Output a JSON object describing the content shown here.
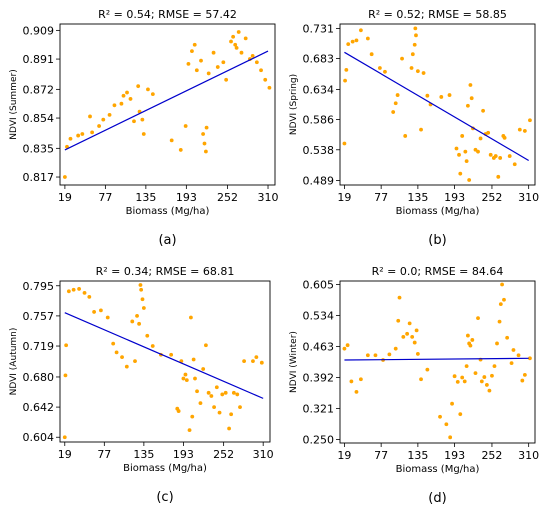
{
  "chart_data": [
    {
      "type": "scatter",
      "title": "R² = 0.54; RMSE = 57.42",
      "xlabel": "Biomass (Mg/ha)",
      "ylabel": "NDVI (Summer)",
      "caption": "(a)",
      "xlim": [
        12,
        320
      ],
      "ylim": [
        0.812,
        0.913
      ],
      "xticks": [
        19,
        77,
        135,
        193,
        252,
        310
      ],
      "yticks": [
        "0.817",
        "0.835",
        "0.854",
        "0.872",
        "0.891",
        "0.909"
      ],
      "colors": {
        "points": "#ffa500",
        "fit": "#0000cc"
      },
      "fit_line": {
        "x": [
          19,
          310
        ],
        "y": [
          0.834,
          0.896
        ]
      },
      "points": [
        {
          "x": 19,
          "y": 0.817
        },
        {
          "x": 22,
          "y": 0.836
        },
        {
          "x": 27,
          "y": 0.841
        },
        {
          "x": 38,
          "y": 0.843
        },
        {
          "x": 44,
          "y": 0.844
        },
        {
          "x": 55,
          "y": 0.855
        },
        {
          "x": 58,
          "y": 0.845
        },
        {
          "x": 68,
          "y": 0.849
        },
        {
          "x": 74,
          "y": 0.853
        },
        {
          "x": 83,
          "y": 0.856
        },
        {
          "x": 90,
          "y": 0.862
        },
        {
          "x": 100,
          "y": 0.863
        },
        {
          "x": 103,
          "y": 0.868
        },
        {
          "x": 108,
          "y": 0.87
        },
        {
          "x": 113,
          "y": 0.866
        },
        {
          "x": 118,
          "y": 0.852
        },
        {
          "x": 124,
          "y": 0.874
        },
        {
          "x": 126,
          "y": 0.858
        },
        {
          "x": 130,
          "y": 0.853
        },
        {
          "x": 132,
          "y": 0.844
        },
        {
          "x": 138,
          "y": 0.872
        },
        {
          "x": 145,
          "y": 0.869
        },
        {
          "x": 172,
          "y": 0.84
        },
        {
          "x": 185,
          "y": 0.834
        },
        {
          "x": 192,
          "y": 0.849
        },
        {
          "x": 196,
          "y": 0.888
        },
        {
          "x": 201,
          "y": 0.896
        },
        {
          "x": 205,
          "y": 0.9
        },
        {
          "x": 208,
          "y": 0.884
        },
        {
          "x": 214,
          "y": 0.89
        },
        {
          "x": 217,
          "y": 0.844
        },
        {
          "x": 219,
          "y": 0.838
        },
        {
          "x": 221,
          "y": 0.833
        },
        {
          "x": 222,
          "y": 0.848
        },
        {
          "x": 225,
          "y": 0.882
        },
        {
          "x": 232,
          "y": 0.895
        },
        {
          "x": 238,
          "y": 0.886
        },
        {
          "x": 246,
          "y": 0.889
        },
        {
          "x": 250,
          "y": 0.878
        },
        {
          "x": 257,
          "y": 0.902
        },
        {
          "x": 260,
          "y": 0.905
        },
        {
          "x": 263,
          "y": 0.9
        },
        {
          "x": 265,
          "y": 0.898
        },
        {
          "x": 268,
          "y": 0.908
        },
        {
          "x": 272,
          "y": 0.895
        },
        {
          "x": 278,
          "y": 0.904
        },
        {
          "x": 284,
          "y": 0.891
        },
        {
          "x": 288,
          "y": 0.893
        },
        {
          "x": 294,
          "y": 0.889
        },
        {
          "x": 300,
          "y": 0.884
        },
        {
          "x": 306,
          "y": 0.878
        },
        {
          "x": 312,
          "y": 0.873
        }
      ]
    },
    {
      "type": "scatter",
      "title": "R² = 0.52; RMSE = 58.85",
      "xlabel": "Biomass (Mg/ha)",
      "ylabel": "NDVI (Spring)",
      "caption": "(b)",
      "xlim": [
        12,
        320
      ],
      "ylim": [
        0.482,
        0.738
      ],
      "xticks": [
        19,
        77,
        135,
        193,
        252,
        310
      ],
      "yticks": [
        "0.489",
        "0.538",
        "0.586",
        "0.634",
        "0.683",
        "0.731"
      ],
      "colors": {
        "points": "#ffa500",
        "fit": "#0000cc"
      },
      "fit_line": {
        "x": [
          19,
          310
        ],
        "y": [
          0.693,
          0.521
        ]
      },
      "points": [
        {
          "x": 19,
          "y": 0.548
        },
        {
          "x": 20,
          "y": 0.648
        },
        {
          "x": 22,
          "y": 0.665
        },
        {
          "x": 25,
          "y": 0.706
        },
        {
          "x": 32,
          "y": 0.71
        },
        {
          "x": 38,
          "y": 0.712
        },
        {
          "x": 45,
          "y": 0.728
        },
        {
          "x": 56,
          "y": 0.715
        },
        {
          "x": 62,
          "y": 0.69
        },
        {
          "x": 75,
          "y": 0.668
        },
        {
          "x": 83,
          "y": 0.662
        },
        {
          "x": 96,
          "y": 0.598
        },
        {
          "x": 100,
          "y": 0.612
        },
        {
          "x": 103,
          "y": 0.625
        },
        {
          "x": 110,
          "y": 0.683
        },
        {
          "x": 115,
          "y": 0.56
        },
        {
          "x": 125,
          "y": 0.668
        },
        {
          "x": 127,
          "y": 0.69
        },
        {
          "x": 130,
          "y": 0.705
        },
        {
          "x": 131,
          "y": 0.731
        },
        {
          "x": 132,
          "y": 0.72
        },
        {
          "x": 135,
          "y": 0.663
        },
        {
          "x": 140,
          "y": 0.57
        },
        {
          "x": 144,
          "y": 0.66
        },
        {
          "x": 150,
          "y": 0.624
        },
        {
          "x": 155,
          "y": 0.61
        },
        {
          "x": 172,
          "y": 0.622
        },
        {
          "x": 185,
          "y": 0.625
        },
        {
          "x": 196,
          "y": 0.54
        },
        {
          "x": 200,
          "y": 0.53
        },
        {
          "x": 202,
          "y": 0.5
        },
        {
          "x": 205,
          "y": 0.56
        },
        {
          "x": 210,
          "y": 0.535
        },
        {
          "x": 212,
          "y": 0.52
        },
        {
          "x": 214,
          "y": 0.608
        },
        {
          "x": 216,
          "y": 0.49
        },
        {
          "x": 218,
          "y": 0.641
        },
        {
          "x": 220,
          "y": 0.62
        },
        {
          "x": 222,
          "y": 0.572
        },
        {
          "x": 226,
          "y": 0.538
        },
        {
          "x": 230,
          "y": 0.535
        },
        {
          "x": 234,
          "y": 0.556
        },
        {
          "x": 238,
          "y": 0.6
        },
        {
          "x": 242,
          "y": 0.563
        },
        {
          "x": 246,
          "y": 0.565
        },
        {
          "x": 250,
          "y": 0.53
        },
        {
          "x": 255,
          "y": 0.525
        },
        {
          "x": 258,
          "y": 0.528
        },
        {
          "x": 262,
          "y": 0.495
        },
        {
          "x": 265,
          "y": 0.525
        },
        {
          "x": 270,
          "y": 0.56
        },
        {
          "x": 272,
          "y": 0.557
        },
        {
          "x": 280,
          "y": 0.528
        },
        {
          "x": 288,
          "y": 0.515
        },
        {
          "x": 296,
          "y": 0.57
        },
        {
          "x": 304,
          "y": 0.568
        },
        {
          "x": 312,
          "y": 0.585
        }
      ]
    },
    {
      "type": "scatter",
      "title": "R² = 0.34; RMSE = 68.81",
      "xlabel": "Biomass (Mg/ha)",
      "ylabel": "NDVI (Autumn)",
      "caption": "(c)",
      "xlim": [
        12,
        320
      ],
      "ylim": [
        0.598,
        0.801
      ],
      "xticks": [
        19,
        77,
        135,
        193,
        252,
        310
      ],
      "yticks": [
        "0.604",
        "0.642",
        "0.680",
        "0.719",
        "0.757",
        "0.795"
      ],
      "colors": {
        "points": "#ffa500",
        "fit": "#0000cc"
      },
      "fit_line": {
        "x": [
          19,
          310
        ],
        "y": [
          0.761,
          0.653
        ]
      },
      "points": [
        {
          "x": 19,
          "y": 0.604
        },
        {
          "x": 20,
          "y": 0.682
        },
        {
          "x": 21,
          "y": 0.72
        },
        {
          "x": 25,
          "y": 0.788
        },
        {
          "x": 32,
          "y": 0.79
        },
        {
          "x": 40,
          "y": 0.791
        },
        {
          "x": 48,
          "y": 0.786
        },
        {
          "x": 55,
          "y": 0.781
        },
        {
          "x": 62,
          "y": 0.762
        },
        {
          "x": 72,
          "y": 0.764
        },
        {
          "x": 82,
          "y": 0.755
        },
        {
          "x": 90,
          "y": 0.722
        },
        {
          "x": 95,
          "y": 0.711
        },
        {
          "x": 103,
          "y": 0.705
        },
        {
          "x": 110,
          "y": 0.693
        },
        {
          "x": 118,
          "y": 0.75
        },
        {
          "x": 122,
          "y": 0.7
        },
        {
          "x": 125,
          "y": 0.757
        },
        {
          "x": 128,
          "y": 0.747
        },
        {
          "x": 130,
          "y": 0.796
        },
        {
          "x": 131,
          "y": 0.79
        },
        {
          "x": 133,
          "y": 0.778
        },
        {
          "x": 135,
          "y": 0.767
        },
        {
          "x": 140,
          "y": 0.732
        },
        {
          "x": 148,
          "y": 0.719
        },
        {
          "x": 160,
          "y": 0.708
        },
        {
          "x": 175,
          "y": 0.708
        },
        {
          "x": 184,
          "y": 0.64
        },
        {
          "x": 186,
          "y": 0.637
        },
        {
          "x": 190,
          "y": 0.7
        },
        {
          "x": 193,
          "y": 0.678
        },
        {
          "x": 196,
          "y": 0.683
        },
        {
          "x": 198,
          "y": 0.676
        },
        {
          "x": 202,
          "y": 0.613
        },
        {
          "x": 204,
          "y": 0.755
        },
        {
          "x": 206,
          "y": 0.63
        },
        {
          "x": 208,
          "y": 0.702
        },
        {
          "x": 210,
          "y": 0.678
        },
        {
          "x": 213,
          "y": 0.662
        },
        {
          "x": 218,
          "y": 0.647
        },
        {
          "x": 222,
          "y": 0.69
        },
        {
          "x": 226,
          "y": 0.72
        },
        {
          "x": 230,
          "y": 0.66
        },
        {
          "x": 234,
          "y": 0.656
        },
        {
          "x": 238,
          "y": 0.642
        },
        {
          "x": 242,
          "y": 0.667
        },
        {
          "x": 246,
          "y": 0.635
        },
        {
          "x": 250,
          "y": 0.658
        },
        {
          "x": 255,
          "y": 0.66
        },
        {
          "x": 260,
          "y": 0.615
        },
        {
          "x": 263,
          "y": 0.633
        },
        {
          "x": 267,
          "y": 0.66
        },
        {
          "x": 272,
          "y": 0.658
        },
        {
          "x": 276,
          "y": 0.642
        },
        {
          "x": 282,
          "y": 0.7
        },
        {
          "x": 295,
          "y": 0.7
        },
        {
          "x": 300,
          "y": 0.705
        },
        {
          "x": 308,
          "y": 0.698
        }
      ]
    },
    {
      "type": "scatter",
      "title": "R² = 0.0; RMSE = 84.64",
      "xlabel": "Biomass (Mg/ha)",
      "ylabel": "NDVI (Winter)",
      "caption": "(d)",
      "xlim": [
        12,
        320
      ],
      "ylim": [
        0.242,
        0.613
      ],
      "xticks": [
        19,
        77,
        135,
        193,
        252,
        310
      ],
      "yticks": [
        "0.250",
        "0.321",
        "0.392",
        "0.463",
        "0.534",
        "0.605"
      ],
      "colors": {
        "points": "#ffa500",
        "fit": "#0000cc"
      },
      "fit_line": {
        "x": [
          19,
          310
        ],
        "y": [
          0.432,
          0.436
        ]
      },
      "points": [
        {
          "x": 19,
          "y": 0.458
        },
        {
          "x": 24,
          "y": 0.466
        },
        {
          "x": 30,
          "y": 0.383
        },
        {
          "x": 38,
          "y": 0.359
        },
        {
          "x": 45,
          "y": 0.388
        },
        {
          "x": 56,
          "y": 0.443
        },
        {
          "x": 68,
          "y": 0.443
        },
        {
          "x": 80,
          "y": 0.432
        },
        {
          "x": 90,
          "y": 0.445
        },
        {
          "x": 100,
          "y": 0.458
        },
        {
          "x": 104,
          "y": 0.522
        },
        {
          "x": 106,
          "y": 0.575
        },
        {
          "x": 112,
          "y": 0.485
        },
        {
          "x": 118,
          "y": 0.492
        },
        {
          "x": 122,
          "y": 0.516
        },
        {
          "x": 126,
          "y": 0.485
        },
        {
          "x": 130,
          "y": 0.472
        },
        {
          "x": 133,
          "y": 0.5
        },
        {
          "x": 135,
          "y": 0.446
        },
        {
          "x": 140,
          "y": 0.388
        },
        {
          "x": 150,
          "y": 0.41
        },
        {
          "x": 170,
          "y": 0.302
        },
        {
          "x": 180,
          "y": 0.285
        },
        {
          "x": 186,
          "y": 0.255
        },
        {
          "x": 189,
          "y": 0.332
        },
        {
          "x": 193,
          "y": 0.395
        },
        {
          "x": 198,
          "y": 0.382
        },
        {
          "x": 202,
          "y": 0.308
        },
        {
          "x": 205,
          "y": 0.392
        },
        {
          "x": 209,
          "y": 0.383
        },
        {
          "x": 212,
          "y": 0.418
        },
        {
          "x": 214,
          "y": 0.488
        },
        {
          "x": 216,
          "y": 0.47
        },
        {
          "x": 218,
          "y": 0.465
        },
        {
          "x": 221,
          "y": 0.478
        },
        {
          "x": 226,
          "y": 0.402
        },
        {
          "x": 230,
          "y": 0.528
        },
        {
          "x": 234,
          "y": 0.433
        },
        {
          "x": 236,
          "y": 0.383
        },
        {
          "x": 240,
          "y": 0.393
        },
        {
          "x": 244,
          "y": 0.375
        },
        {
          "x": 248,
          "y": 0.362
        },
        {
          "x": 252,
          "y": 0.396
        },
        {
          "x": 256,
          "y": 0.418
        },
        {
          "x": 260,
          "y": 0.47
        },
        {
          "x": 264,
          "y": 0.52
        },
        {
          "x": 266,
          "y": 0.56
        },
        {
          "x": 268,
          "y": 0.605
        },
        {
          "x": 271,
          "y": 0.57
        },
        {
          "x": 276,
          "y": 0.483
        },
        {
          "x": 283,
          "y": 0.425
        },
        {
          "x": 286,
          "y": 0.455
        },
        {
          "x": 294,
          "y": 0.443
        },
        {
          "x": 300,
          "y": 0.385
        },
        {
          "x": 304,
          "y": 0.398
        },
        {
          "x": 312,
          "y": 0.436
        }
      ]
    }
  ]
}
